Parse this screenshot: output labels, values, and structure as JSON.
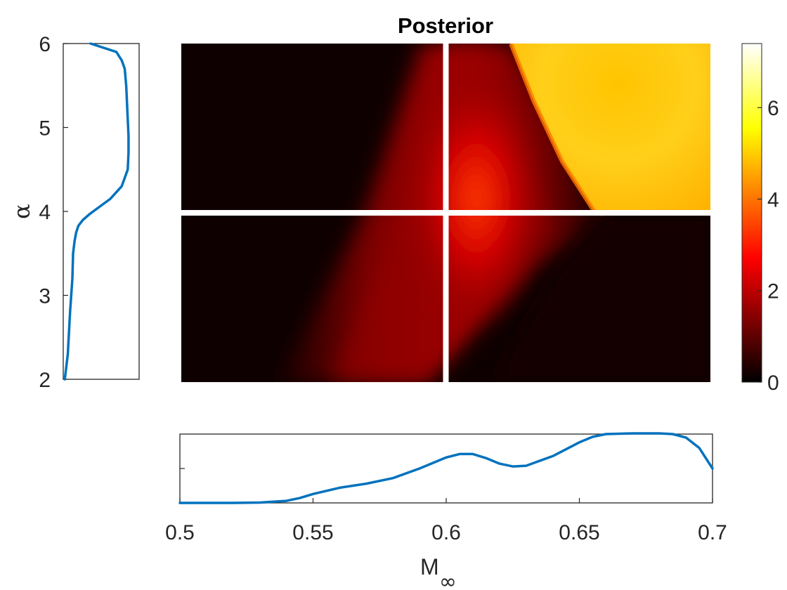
{
  "chart_data": [
    {
      "type": "heatmap",
      "title": "Posterior",
      "xlim": [
        0.5,
        0.7
      ],
      "ylim": [
        2,
        6
      ],
      "colormap": "hot",
      "colorbar": {
        "range": [
          0,
          7.4
        ],
        "ticks": [
          0,
          2,
          4,
          6
        ],
        "tick_labels": [
          "0",
          "2",
          "4",
          "6"
        ]
      },
      "crosshair": {
        "x": 0.6,
        "y": 4.0,
        "color": "#ffffff"
      },
      "features": {
        "ridge_peak": {
          "x": 0.61,
          "y": 4.6,
          "value": 2.6
        },
        "high_region_value": 6.2
      }
    },
    {
      "type": "line",
      "name": "alpha-marginal",
      "orientation": "vertical",
      "y_axis": {
        "range": [
          2,
          6
        ],
        "ticks": [
          2,
          3,
          4,
          5,
          6
        ],
        "tick_labels": [
          "2",
          "3",
          "4",
          "5",
          "6"
        ],
        "label": "α"
      },
      "color": "#0072bd",
      "x": [
        0.02,
        0.06,
        0.09,
        0.12,
        0.13,
        0.15,
        0.17,
        0.2,
        0.26,
        0.35,
        0.47,
        0.62,
        0.77,
        0.85,
        0.86,
        0.86,
        0.85,
        0.84,
        0.83,
        0.81,
        0.77,
        0.7,
        0.36
      ],
      "y": [
        2.0,
        2.3,
        2.8,
        3.2,
        3.5,
        3.65,
        3.75,
        3.83,
        3.9,
        3.97,
        4.05,
        4.15,
        4.3,
        4.5,
        4.7,
        4.9,
        5.1,
        5.3,
        5.5,
        5.7,
        5.8,
        5.9,
        6.0
      ]
    },
    {
      "type": "line",
      "name": "mach-marginal",
      "x_axis": {
        "range": [
          0.5,
          0.7
        ],
        "ticks": [
          0.5,
          0.55,
          0.6,
          0.65,
          0.7
        ],
        "tick_labels": [
          "0.5",
          "0.55",
          "0.6",
          "0.65",
          "0.7"
        ],
        "label_main": "M",
        "label_sub": "∞"
      },
      "y_axis": {
        "range": [
          0,
          1
        ]
      },
      "color": "#0072bd",
      "x": [
        0.5,
        0.52,
        0.53,
        0.54,
        0.545,
        0.55,
        0.56,
        0.57,
        0.58,
        0.59,
        0.6,
        0.605,
        0.61,
        0.615,
        0.62,
        0.625,
        0.63,
        0.64,
        0.65,
        0.655,
        0.66,
        0.67,
        0.68,
        0.685,
        0.69,
        0.695,
        0.7
      ],
      "y": [
        0.0,
        0.0,
        0.005,
        0.03,
        0.07,
        0.13,
        0.22,
        0.28,
        0.36,
        0.5,
        0.66,
        0.71,
        0.71,
        0.65,
        0.57,
        0.53,
        0.54,
        0.68,
        0.88,
        0.96,
        1.0,
        1.01,
        1.01,
        1.0,
        0.95,
        0.8,
        0.5
      ]
    }
  ]
}
